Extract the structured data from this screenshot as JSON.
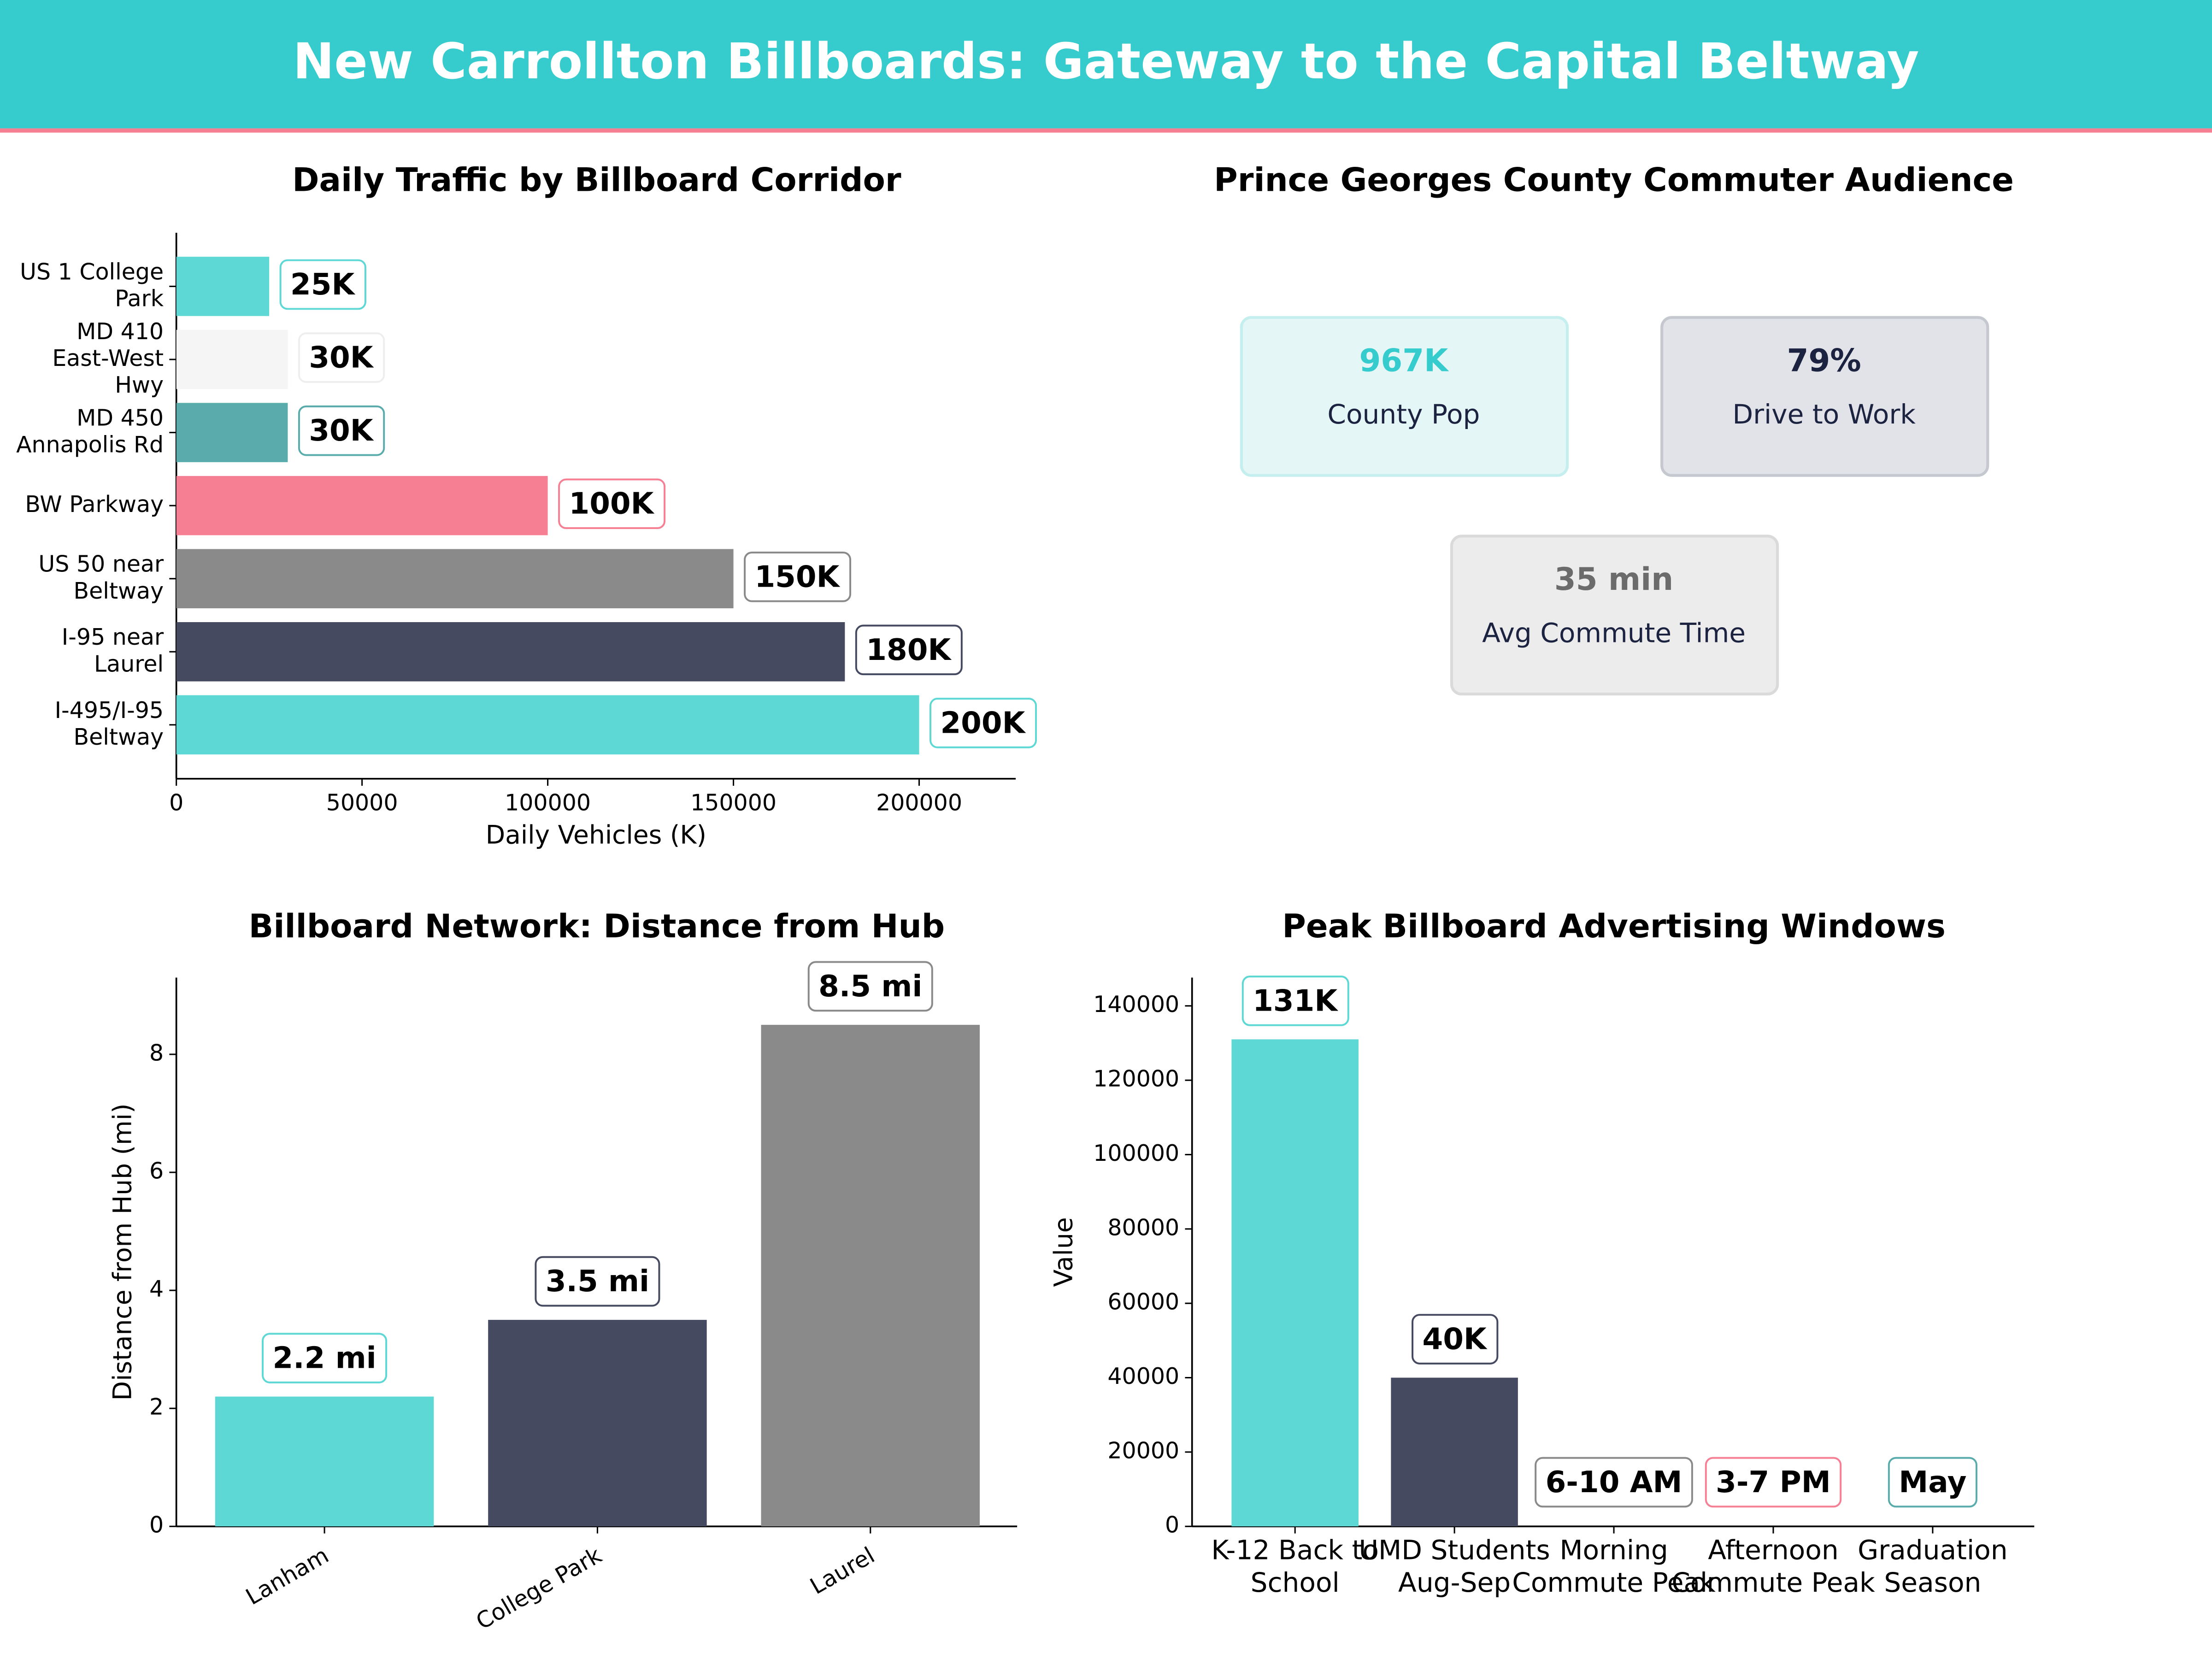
{
  "title": "New Carrollton Billboards: Gateway to the Capital Beltway",
  "chart_data": [
    {
      "type": "barh",
      "title": "Daily Traffic by Billboard Corridor",
      "categories": [
        "US 1 College Park",
        "MD 410 East-West Hwy",
        "MD 450 Annapolis Rd",
        "BW Parkway",
        "US 50 near Beltway",
        "I-95 near Laurel",
        "I-495/I-95 Beltway"
      ],
      "values": [
        25000,
        30000,
        30000,
        100000,
        150000,
        180000,
        200000
      ],
      "value_labels": [
        "25K",
        "30K",
        "30K",
        "100K",
        "150K",
        "180K",
        "200K"
      ],
      "colors": [
        "#5dd8d4",
        "#f5f5f5",
        "#5aacac",
        "#f67f93",
        "#8a8a8a",
        "#454a61",
        "#5dd8d4"
      ],
      "xlabel": "Daily Vehicles (K)",
      "xlim": [
        0,
        226000
      ],
      "xticks": [
        0,
        50000,
        100000,
        150000,
        200000
      ]
    },
    {
      "type": "bar",
      "title": "Billboard Network: Distance from Hub",
      "categories": [
        "Lanham",
        "College Park",
        "Laurel"
      ],
      "values": [
        2.2,
        3.5,
        8.5
      ],
      "value_labels": [
        "2.2 mi",
        "3.5 mi",
        "8.5 mi"
      ],
      "colors": [
        "#5dd8d4",
        "#454a61",
        "#8a8a8a"
      ],
      "ylabel": "Distance from Hub (mi)",
      "ylim": [
        0,
        9.3
      ],
      "yticks": [
        0,
        2,
        4,
        6,
        8
      ]
    },
    {
      "type": "bar",
      "title": "Peak Billboard Advertising Windows",
      "categories": [
        "K-12 Back to School",
        "UMD Students Aug-Sep",
        "Morning Commute Peak",
        "Afternoon Commute Peak",
        "Graduation Season"
      ],
      "values": [
        131000,
        40000,
        null,
        null,
        null
      ],
      "value_labels": [
        "131K",
        "40K",
        null,
        null,
        null
      ],
      "annotations": [
        null,
        null,
        "6-10 AM",
        "3-7 PM",
        "May"
      ],
      "colors": [
        "#5dd8d4",
        "#454a61",
        "#8a8a8a",
        "#f67f93",
        "#5aacac"
      ],
      "ylabel": "Value",
      "ylim": [
        0,
        147600
      ],
      "yticks": [
        0,
        20000,
        40000,
        60000,
        80000,
        100000,
        120000,
        140000
      ]
    }
  ],
  "kpi_panel": {
    "title": "Prince Georges County Commuter Audience",
    "cards": [
      {
        "value": "967K",
        "label": "County Pop"
      },
      {
        "value": "79%",
        "label": "Drive to Work"
      },
      {
        "value": "35 min",
        "label": "Avg Commute Time"
      }
    ]
  }
}
